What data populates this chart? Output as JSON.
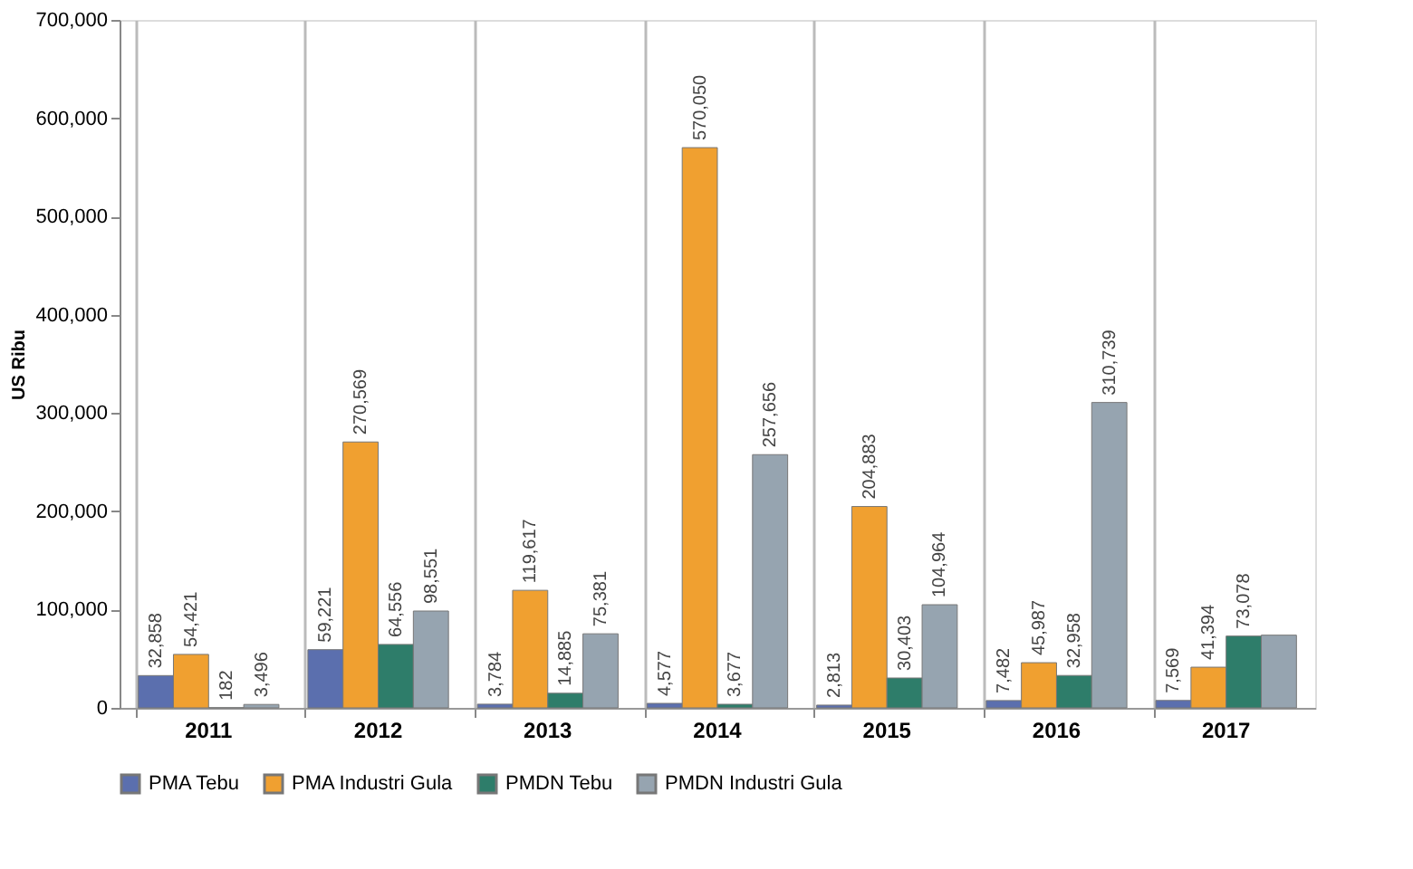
{
  "chart_data": {
    "type": "bar",
    "ylabel": "US Ribu",
    "categories": [
      "2011",
      "2012",
      "2013",
      "2014",
      "2015",
      "2016",
      "2017"
    ],
    "series": [
      {
        "name": "PMA Tebu",
        "color": "#5b6fae",
        "values": [
          32858,
          59221,
          3784,
          4577,
          2813,
          7482,
          7569
        ],
        "value_labels": [
          "32,858",
          "59,221",
          "3,784",
          "4,577",
          "2,813",
          "7,482",
          "7,569"
        ]
      },
      {
        "name": "PMA Industri Gula",
        "color": "#f0a030",
        "values": [
          54421,
          270569,
          119617,
          570050,
          204883,
          45987,
          41394
        ],
        "value_labels": [
          "54,421",
          "270,569",
          "119,617",
          "570,050",
          "204,883",
          "45,987",
          "41,394"
        ]
      },
      {
        "name": "PMDN Tebu",
        "color": "#2e7d6a",
        "values": [
          182,
          64556,
          14885,
          3677,
          30403,
          32958,
          73078
        ],
        "value_labels": [
          "182",
          "64,556",
          "14,885",
          "3,677",
          "30,403",
          "32,958",
          "73,078"
        ]
      },
      {
        "name": "PMDN Industri Gula",
        "color": "#96a4b0",
        "values": [
          3496,
          98551,
          75381,
          257656,
          104964,
          310739,
          74000
        ],
        "value_labels": [
          "3,496",
          "98,551",
          "75,381",
          "257,656",
          "104,964",
          "310,739",
          null
        ]
      }
    ],
    "ylim": [
      0,
      700000
    ],
    "yticks": [
      0,
      {
        "value": 100000,
        "label": "100,000"
      },
      {
        "value": 200000,
        "label": "200,000"
      },
      {
        "value": 300000,
        "label": "300,000"
      },
      {
        "value": 400000,
        "label": "400,000"
      },
      {
        "value": 500000,
        "label": "500,000"
      },
      {
        "value": 600000,
        "label": "600,000"
      },
      {
        "value": 700000,
        "label": "700,000"
      }
    ],
    "grid": "x",
    "legend": "bottom"
  }
}
